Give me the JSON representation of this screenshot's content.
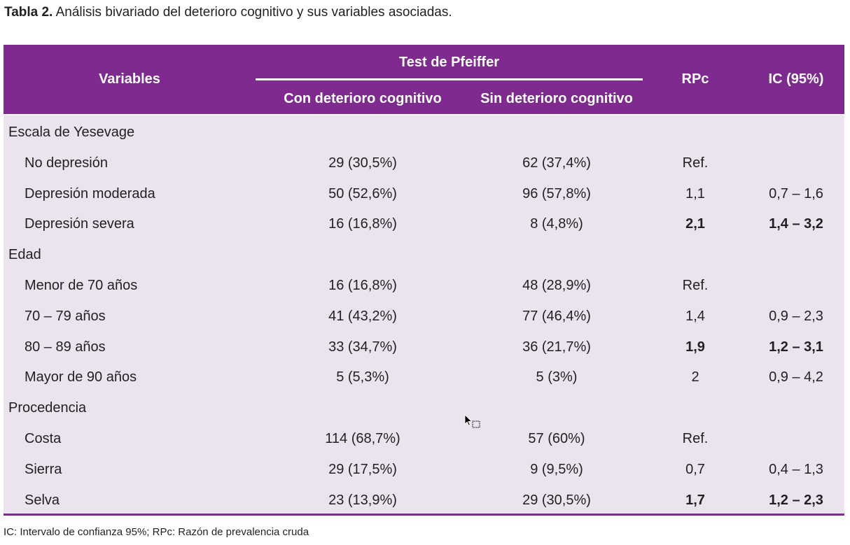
{
  "caption": {
    "label": "Tabla 2.",
    "text": "Análisis bivariado del deterioro cognitivo y sus variables asociadas."
  },
  "header": {
    "variables": "Variables",
    "group": "Test de Pfeiffer",
    "con": "Con deterioro cognitivo",
    "sin": "Sin deterioro cognitivo",
    "rpc": "RPc",
    "ic": "IC (95%)"
  },
  "rows": [
    {
      "label": "Escala de Yesevage",
      "con": "",
      "sin": "",
      "rpc": "",
      "ic": "",
      "type": "group",
      "bold": false
    },
    {
      "label": "No depresión",
      "con": "29 (30,5%)",
      "sin": "62 (37,4%)",
      "rpc": "Ref.",
      "ic": "",
      "type": "sub",
      "bold": false
    },
    {
      "label": "Depresión moderada",
      "con": "50 (52,6%)",
      "sin": "96 (57,8%)",
      "rpc": "1,1",
      "ic": "0,7 – 1,6",
      "type": "sub",
      "bold": false
    },
    {
      "label": "Depresión severa",
      "con": "16 (16,8%)",
      "sin": "8 (4,8%)",
      "rpc": "2,1",
      "ic": "1,4 – 3,2",
      "type": "sub",
      "bold": true
    },
    {
      "label": "Edad",
      "con": "",
      "sin": "",
      "rpc": "",
      "ic": "",
      "type": "group",
      "bold": false
    },
    {
      "label": "Menor de 70 años",
      "con": "16 (16,8%)",
      "sin": "48 (28,9%)",
      "rpc": "Ref.",
      "ic": "",
      "type": "sub",
      "bold": false
    },
    {
      "label": "70 – 79 años",
      "con": "41 (43,2%)",
      "sin": "77 (46,4%)",
      "rpc": "1,4",
      "ic": "0,9 – 2,3",
      "type": "sub",
      "bold": false
    },
    {
      "label": "80 – 89 años",
      "con": "33 (34,7%)",
      "sin": "36 (21,7%)",
      "rpc": "1,9",
      "ic": "1,2 – 3,1",
      "type": "sub",
      "bold": true
    },
    {
      "label": "Mayor de 90 años",
      "con": "5 (5,3%)",
      "sin": "5 (3%)",
      "rpc": "2",
      "ic": "0,9 – 4,2",
      "type": "sub",
      "bold": false
    },
    {
      "label": "Procedencia",
      "con": "",
      "sin": "",
      "rpc": "",
      "ic": "",
      "type": "group",
      "bold": false
    },
    {
      "label": "Costa",
      "con": "114 (68,7%)",
      "sin": "57 (60%)",
      "rpc": "Ref.",
      "ic": "",
      "type": "sub",
      "bold": false
    },
    {
      "label": "Sierra",
      "con": "29 (17,5%)",
      "sin": "9 (9,5%)",
      "rpc": "0,7",
      "ic": "0,4 – 1,3",
      "type": "sub",
      "bold": false
    },
    {
      "label": "Selva",
      "con": "23 (13,9%)",
      "sin": "29 (30,5%)",
      "rpc": "1,7",
      "ic": "1,2 – 2,3",
      "type": "sub",
      "bold": true
    }
  ],
  "footnote": "IC: Intervalo de confianza 95%; RPc: Razón de prevalencia cruda",
  "colors": {
    "header_bg": "#7e2a8e",
    "body_bg": "#ebe4ef",
    "text": "#231f20"
  },
  "cursor": {
    "icon": "mouse-pointer-icon"
  }
}
